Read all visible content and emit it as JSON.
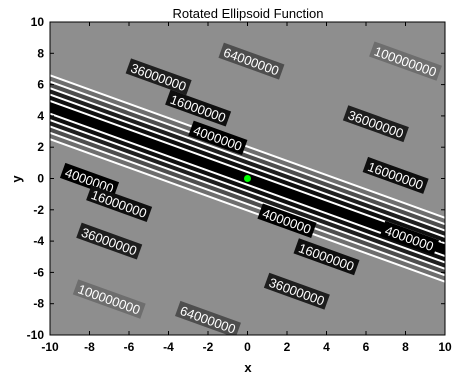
{
  "chart_data": {
    "type": "contour",
    "title": "Rotated Ellipsoid Function",
    "xlabel": "x",
    "ylabel": "y",
    "xlim": [
      -10,
      10
    ],
    "ylim": [
      -10,
      10
    ],
    "x_ticks": [
      -10,
      -8,
      -6,
      -4,
      -2,
      0,
      2,
      4,
      6,
      8,
      10
    ],
    "y_ticks": [
      -10,
      -8,
      -6,
      -4,
      -2,
      0,
      2,
      4,
      6,
      8,
      10
    ],
    "direction_y_per_x": -0.455,
    "spacing_scale": 4.9,
    "levels": [
      4000000,
      16000000,
      36000000,
      64000000,
      100000000
    ],
    "level_labels": [
      "4000000",
      "16000000",
      "36000000",
      "64000000",
      "100000000"
    ],
    "band_colors": [
      "#000000",
      "#0f0f0f",
      "#1f1f1f",
      "#4e4e4e",
      "#6e6e6e",
      "#8e8e8e"
    ],
    "contour_color": "#ffffff",
    "contour_labels": [
      {
        "text": "64000000",
        "x": 0.2,
        "y": 7.5
      },
      {
        "text": "100000000",
        "x": 8,
        "y": 7.5
      },
      {
        "text": "36000000",
        "x": -4.5,
        "y": 6.5
      },
      {
        "text": "36000000",
        "x": 6.5,
        "y": 3.5
      },
      {
        "text": "16000000",
        "x": -2.5,
        "y": 4.5
      },
      {
        "text": "16000000",
        "x": 7.5,
        "y": 0.2
      },
      {
        "text": "4000000",
        "x": -1.5,
        "y": 2.6
      },
      {
        "text": "4000000",
        "x": 8.2,
        "y": -3.8
      },
      {
        "text": "4000000",
        "x": -8,
        "y": -0.1
      },
      {
        "text": "4000000",
        "x": 2,
        "y": -2.7
      },
      {
        "text": "16000000",
        "x": -6.5,
        "y": -1.6
      },
      {
        "text": "16000000",
        "x": 4,
        "y": -5
      },
      {
        "text": "36000000",
        "x": -7,
        "y": -4
      },
      {
        "text": "36000000",
        "x": 2.5,
        "y": -7.2
      },
      {
        "text": "100000000",
        "x": -7,
        "y": -7.7
      },
      {
        "text": "64000000",
        "x": -2,
        "y": -9
      }
    ],
    "minimum_point": {
      "x": 0,
      "y": 0,
      "color": "#00ff00"
    },
    "grid": false,
    "legend": "none"
  }
}
